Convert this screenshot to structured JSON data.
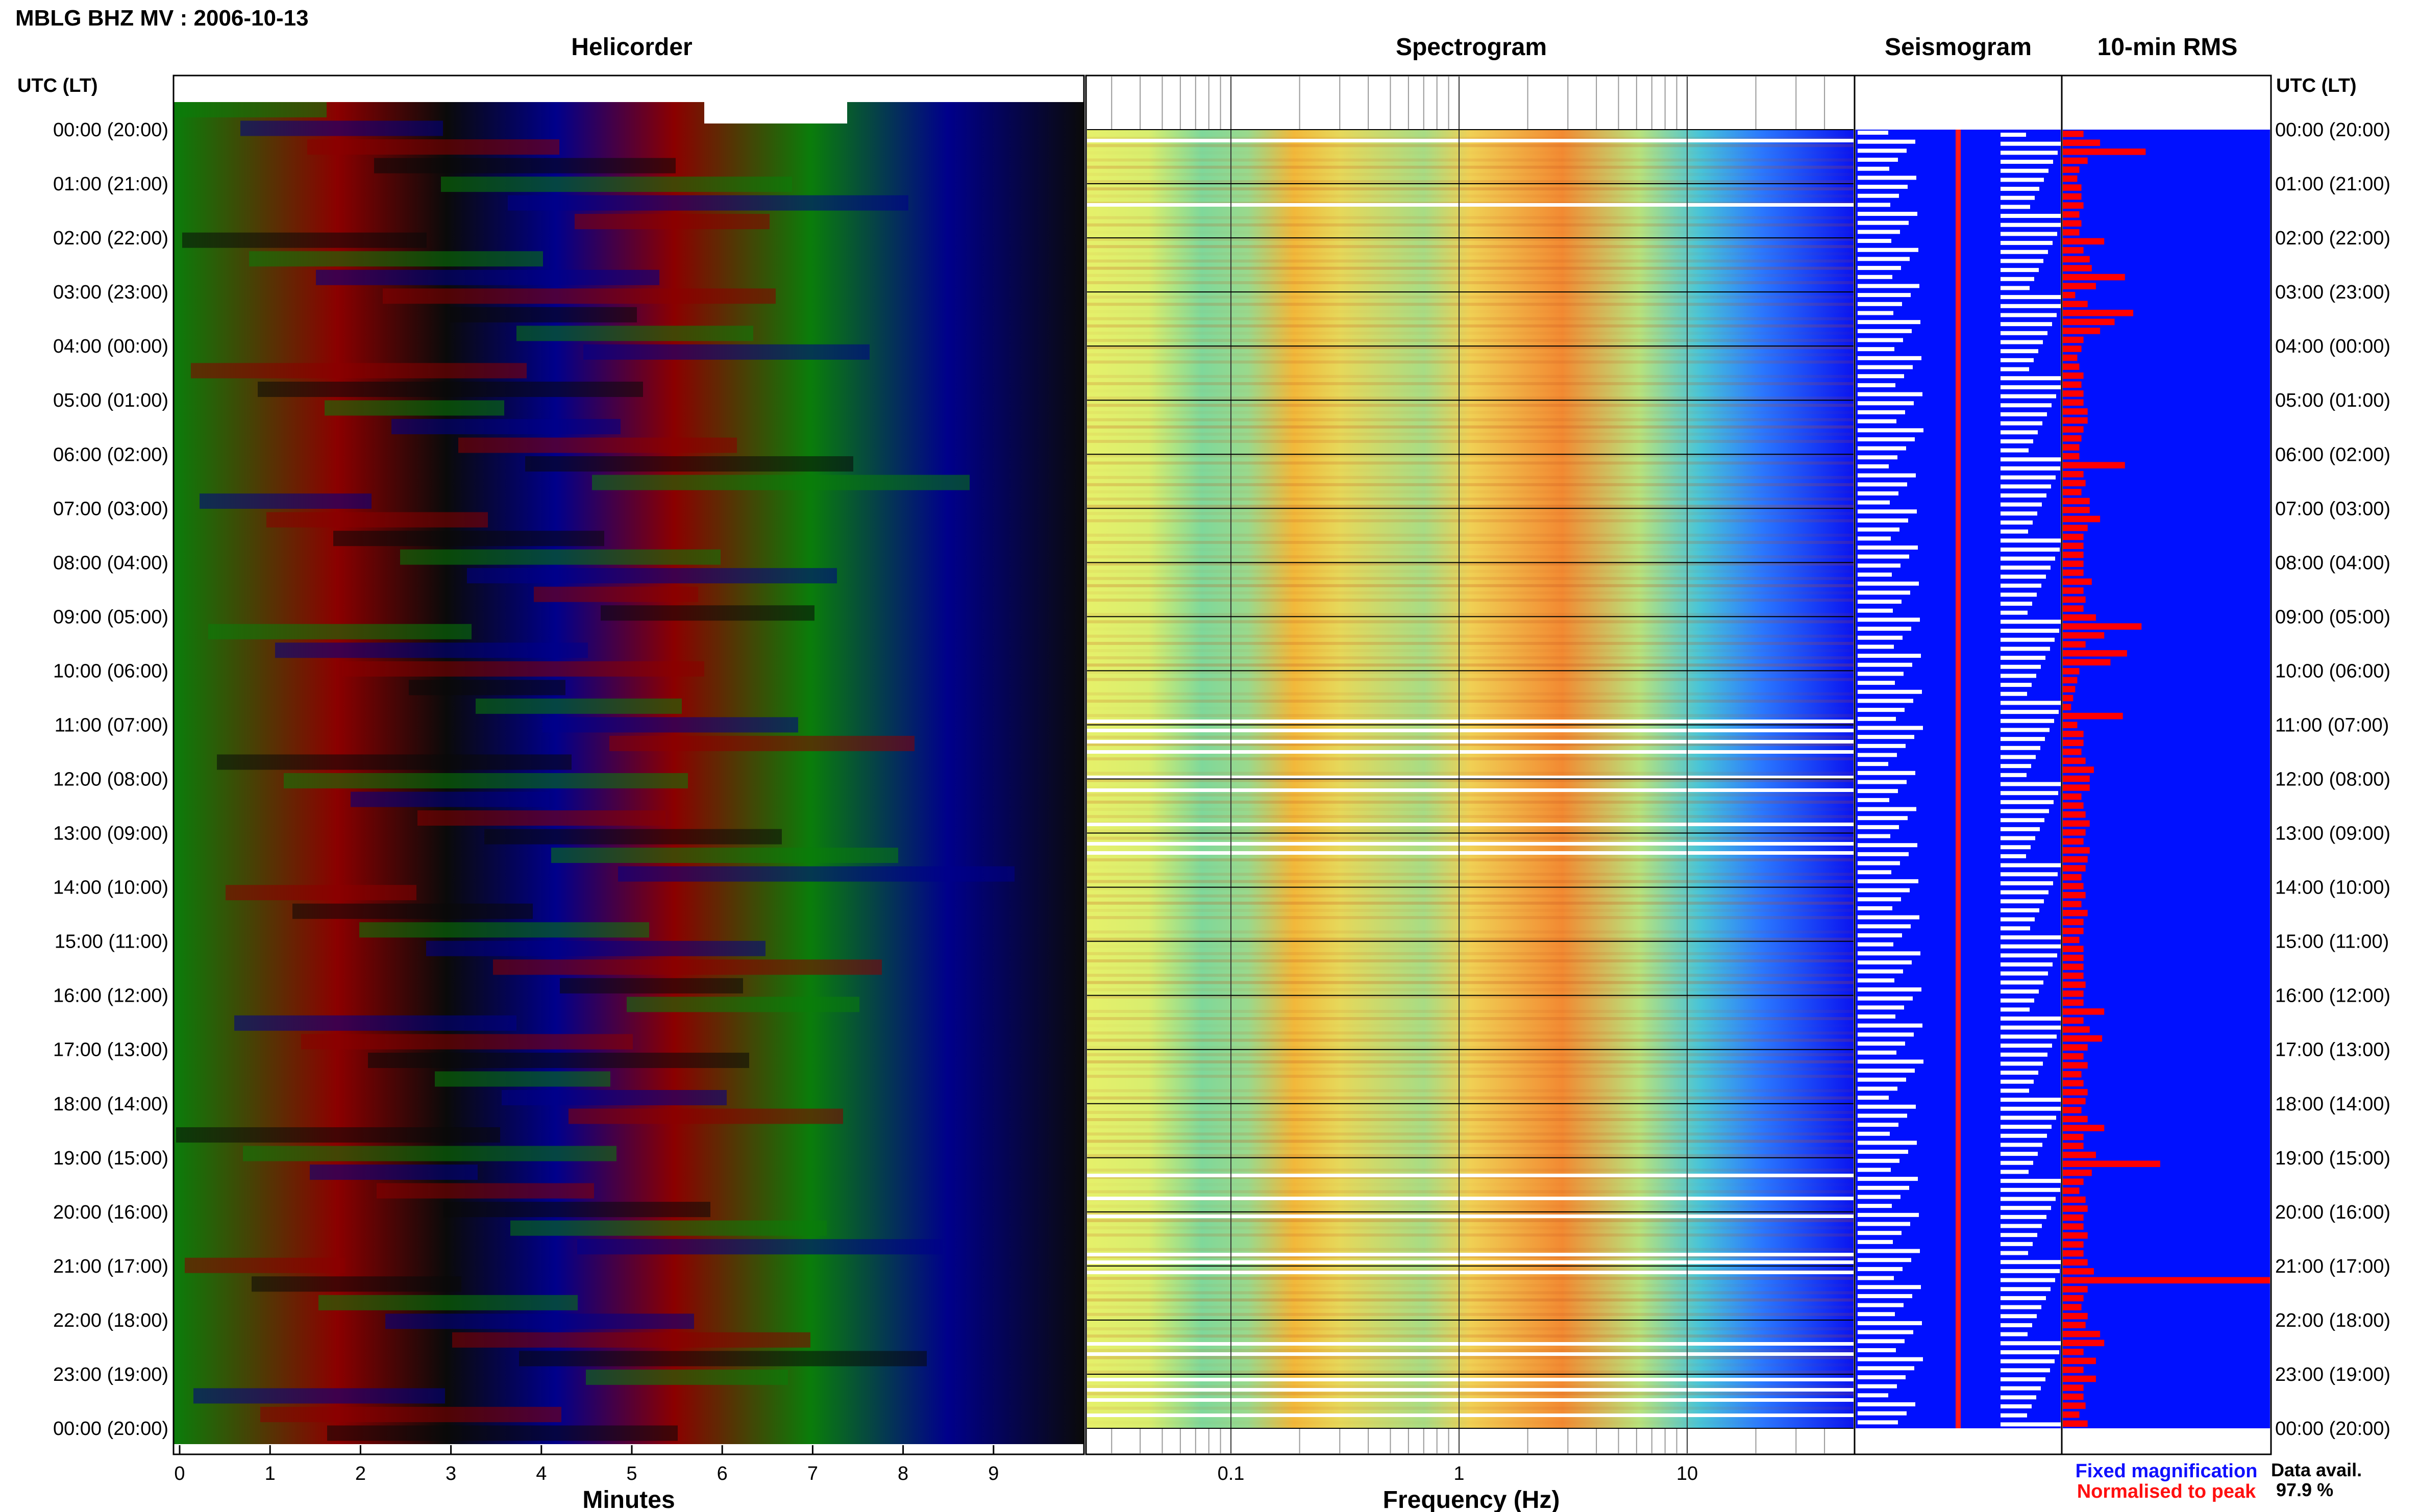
{
  "header": {
    "station_title": "MBLG BHZ MV : 2006-10-13",
    "utc_lt_left": "UTC (LT)",
    "utc_lt_right": "UTC (LT)"
  },
  "panels": {
    "helicorder": "Helicorder",
    "spectrogram": "Spectrogram",
    "seismogram": "Seismogram",
    "rms": "10-min RMS"
  },
  "time_labels": [
    "00:00 (20:00)",
    "01:00 (21:00)",
    "02:00 (22:00)",
    "03:00 (23:00)",
    "04:00 (00:00)",
    "05:00 (01:00)",
    "06:00 (02:00)",
    "07:00 (03:00)",
    "08:00 (04:00)",
    "09:00 (05:00)",
    "10:00 (06:00)",
    "11:00 (07:00)",
    "12:00 (08:00)",
    "13:00 (09:00)",
    "14:00 (10:00)",
    "15:00 (11:00)",
    "16:00 (12:00)",
    "17:00 (13:00)",
    "18:00 (14:00)",
    "19:00 (15:00)",
    "20:00 (16:00)",
    "21:00 (17:00)",
    "22:00 (18:00)",
    "23:00 (19:00)",
    "00:00 (20:00)"
  ],
  "helicorder_axis": {
    "xlabel": "Minutes",
    "ticks": [
      "0",
      "1",
      "2",
      "3",
      "4",
      "5",
      "6",
      "7",
      "8",
      "9"
    ],
    "xlim": [
      0,
      10
    ]
  },
  "spectrogram_axis": {
    "xlabel": "Frequency (Hz)",
    "ticks": [
      "0.1",
      "1",
      "10"
    ],
    "scale": "log"
  },
  "legend": {
    "fixed": "Fixed magnification",
    "normalised": "Normalised to peak",
    "fixed_color": "#1010ff",
    "normalised_color": "#ff1010"
  },
  "data_availability": {
    "label": "Data avail.",
    "value": "97.9 %"
  },
  "colors": {
    "trace_colors": [
      "#0a0a0a",
      "#8b0000",
      "#00008b",
      "#0a7d0a"
    ],
    "rms_background": "#0010ff",
    "rms_bar": "#ff0000",
    "seismogram_background": "#0010ff",
    "seismogram_trace": "#ffffff",
    "seismogram_center": "#ff0000"
  },
  "chart_data": {
    "type": "heatmap",
    "rms_10min": [
      0.1,
      0.18,
      0.4,
      0.12,
      0.08,
      0.07,
      0.09,
      0.09,
      0.1,
      0.08,
      0.09,
      0.08,
      0.2,
      0.1,
      0.13,
      0.14,
      0.3,
      0.16,
      0.06,
      0.12,
      0.34,
      0.25,
      0.18,
      0.1,
      0.09,
      0.07,
      0.08,
      0.1,
      0.09,
      0.1,
      0.1,
      0.12,
      0.12,
      0.1,
      0.09,
      0.08,
      0.08,
      0.3,
      0.1,
      0.11,
      0.09,
      0.13,
      0.13,
      0.18,
      0.12,
      0.1,
      0.1,
      0.1,
      0.1,
      0.1,
      0.14,
      0.1,
      0.11,
      0.1,
      0.16,
      0.38,
      0.2,
      0.11,
      0.31,
      0.23,
      0.08,
      0.07,
      0.06,
      0.05,
      0.04,
      0.29,
      0.07,
      0.1,
      0.1,
      0.09,
      0.11,
      0.15,
      0.13,
      0.13,
      0.09,
      0.1,
      0.11,
      0.13,
      0.11,
      0.1,
      0.13,
      0.12,
      0.11,
      0.09,
      0.1,
      0.11,
      0.09,
      0.12,
      0.1,
      0.1,
      0.08,
      0.1,
      0.1,
      0.1,
      0.1,
      0.11,
      0.1,
      0.1,
      0.2,
      0.1,
      0.13,
      0.19,
      0.12,
      0.1,
      0.12,
      0.09,
      0.1,
      0.12,
      0.11,
      0.09,
      0.12,
      0.2,
      0.1,
      0.1,
      0.16,
      0.47,
      0.14,
      0.1,
      0.08,
      0.11,
      0.12,
      0.1,
      0.1,
      0.12,
      0.1,
      0.1,
      0.12,
      0.15,
      1.0,
      0.12,
      0.1,
      0.09,
      0.12,
      0.11,
      0.18,
      0.2,
      0.1,
      0.16,
      0.1,
      0.16,
      0.1,
      0.1,
      0.11,
      0.08,
      0.12
    ]
  }
}
